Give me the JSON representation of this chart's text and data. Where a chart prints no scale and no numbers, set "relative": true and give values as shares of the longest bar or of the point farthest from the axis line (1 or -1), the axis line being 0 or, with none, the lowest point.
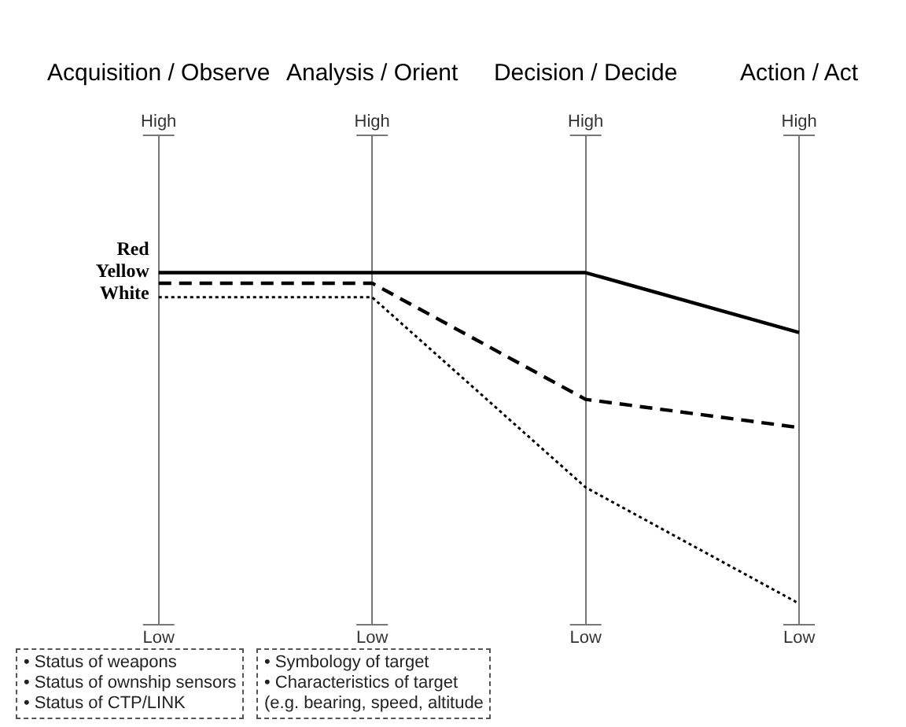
{
  "chart_data": {
    "type": "line",
    "relative": true,
    "categories": [
      "Acquisition / Observe",
      "Analysis / Orient",
      "Decision / Decide",
      "Action / Act"
    ],
    "grid": "x",
    "legend": false,
    "marker": "none",
    "series": [
      {
        "name": "Red",
        "color": "#000000",
        "line_style": "solid",
        "values": [
          1,
          1,
          1,
          0.83
        ]
      },
      {
        "name": "Yellow",
        "color": "#000000",
        "line_style": "dashed",
        "values": [
          0.97,
          0.97,
          0.64,
          0.56
        ]
      },
      {
        "name": "White",
        "color": "#000000",
        "line_style": "dotted",
        "values": [
          0.93,
          0.93,
          0.39,
          0.06
        ]
      }
    ],
    "annotations": [
      "High",
      "Low",
      "High",
      "Low",
      "High",
      "Low",
      "High",
      "Low",
      "• Status of weapons\n• Status of ownship sensors\n• Status of CTP/LINK",
      "• Symbology of target\n• Characteristics of target\n(e.g. bearing, speed, altitude"
    ]
  }
}
